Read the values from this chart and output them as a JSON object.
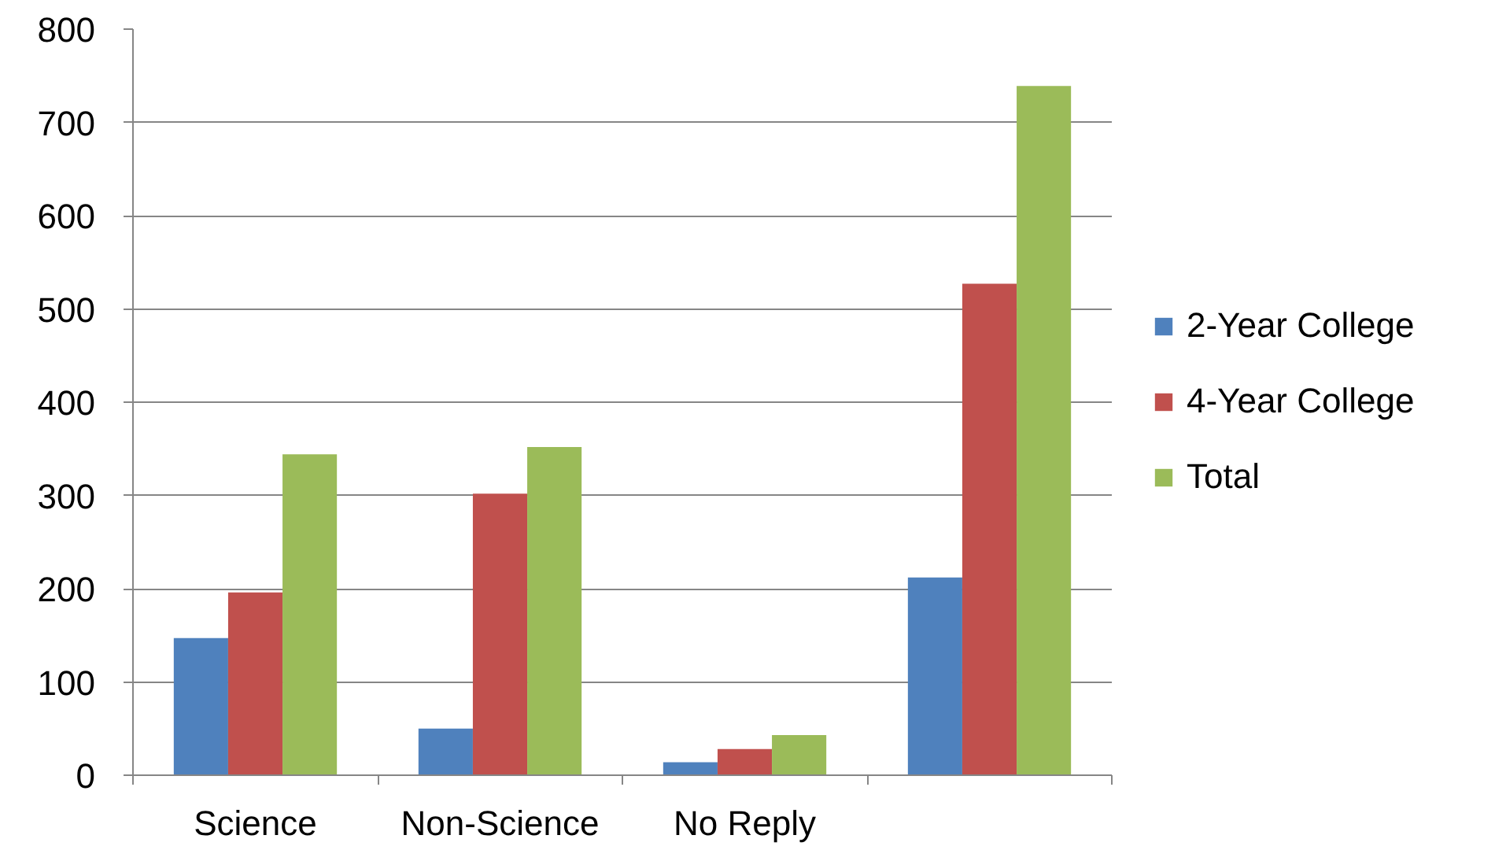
{
  "chart_data": {
    "type": "bar",
    "categories": [
      "Science",
      "Non-Science",
      "No Reply",
      null
    ],
    "series": [
      {
        "name": "2-Year College",
        "color": "#4f81bd",
        "values": [
          147,
          50,
          14,
          212
        ]
      },
      {
        "name": "4-Year College",
        "color": "#c0504d",
        "values": [
          196,
          302,
          28,
          527
        ]
      },
      {
        "name": "Total",
        "color": "#9bbb59",
        "values": [
          344,
          352,
          43,
          739
        ]
      }
    ],
    "ylim": [
      0,
      800
    ],
    "yticks": [
      0,
      100,
      200,
      300,
      400,
      500,
      600,
      700,
      800
    ],
    "grid": "y",
    "legend": "right"
  }
}
